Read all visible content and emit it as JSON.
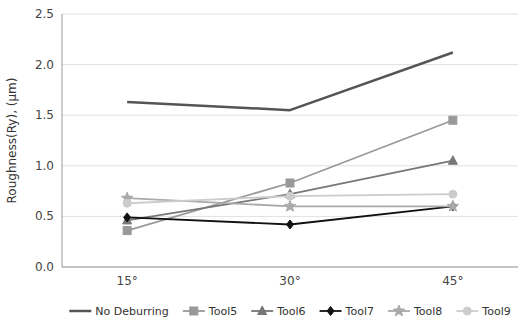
{
  "chart_data": {
    "type": "line",
    "categories": [
      "15°",
      "30°",
      "45°"
    ],
    "series": [
      {
        "name": "No Deburring",
        "color": "#555555",
        "marker": "none",
        "values": [
          1.63,
          1.55,
          2.12
        ]
      },
      {
        "name": "Tool5",
        "color": "#999999",
        "marker": "square",
        "values": [
          0.36,
          0.83,
          1.45
        ]
      },
      {
        "name": "Tool6",
        "color": "#777777",
        "marker": "triangle",
        "values": [
          0.46,
          0.72,
          1.05
        ]
      },
      {
        "name": "Tool7",
        "color": "#111111",
        "marker": "diamond",
        "values": [
          0.49,
          0.42,
          0.6
        ]
      },
      {
        "name": "Tool8",
        "color": "#aaaaaa",
        "marker": "star",
        "values": [
          0.68,
          0.6,
          0.6
        ]
      },
      {
        "name": "Tool9",
        "color": "#cccccc",
        "marker": "circle",
        "values": [
          0.63,
          0.7,
          0.72
        ]
      }
    ],
    "y_label": "Roughness(Ry), (μm)",
    "ylim": [
      0.0,
      2.5
    ],
    "yticks": [
      {
        "value": 0.0,
        "label": "0.0"
      },
      0.5,
      {
        "value": 1.0,
        "label": "1.0"
      },
      1.5,
      {
        "value": 2.0,
        "label": "2.0"
      },
      2.5
    ],
    "grid": true,
    "legend": "bottom"
  }
}
